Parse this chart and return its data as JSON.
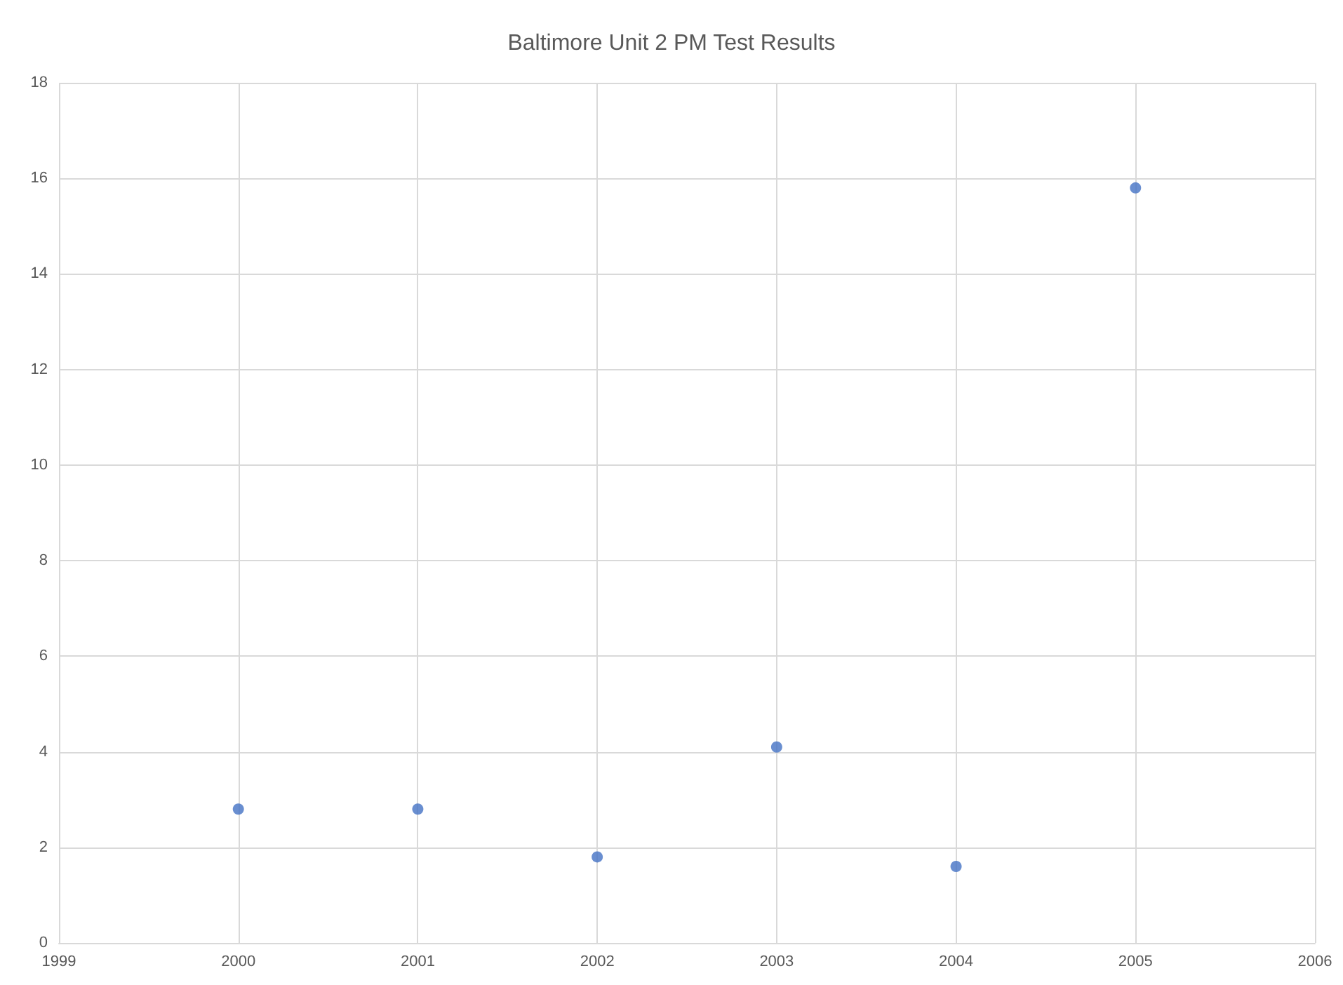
{
  "chart_data": {
    "type": "scatter",
    "title": "Baltimore Unit 2 PM Test Results",
    "x": [
      2000,
      2001,
      2002,
      2003,
      2004,
      2005
    ],
    "values": [
      2.8,
      2.8,
      1.8,
      4.1,
      1.6,
      15.8
    ],
    "color": "#4472c4",
    "xlim": [
      1999,
      2006
    ],
    "xticks": [
      1999,
      2000,
      2001,
      2002,
      2003,
      2004,
      2005,
      2006
    ],
    "ylim": [
      0,
      18
    ],
    "yticks": [
      0,
      2,
      4,
      6,
      8,
      10,
      12,
      14,
      16,
      18
    ],
    "grid": true,
    "marker": "circle"
  }
}
